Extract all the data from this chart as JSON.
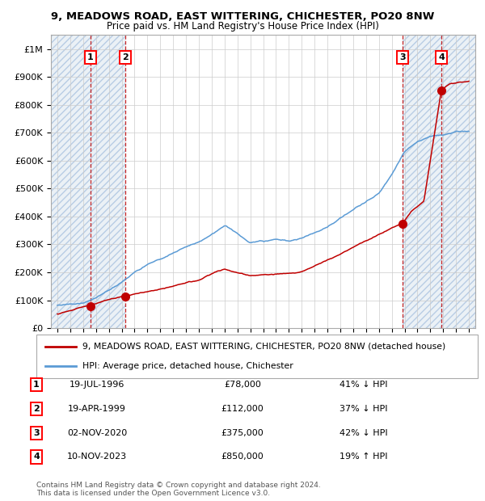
{
  "title_line1": "9, MEADOWS ROAD, EAST WITTERING, CHICHESTER, PO20 8NW",
  "title_line2": "Price paid vs. HM Land Registry's House Price Index (HPI)",
  "xlim": [
    1993.5,
    2026.5
  ],
  "ylim": [
    0,
    1050000
  ],
  "yticks": [
    0,
    100000,
    200000,
    300000,
    400000,
    500000,
    600000,
    700000,
    800000,
    900000,
    1000000
  ],
  "xticks": [
    1994,
    1995,
    1996,
    1997,
    1998,
    1999,
    2000,
    2001,
    2002,
    2003,
    2004,
    2005,
    2006,
    2007,
    2008,
    2009,
    2010,
    2011,
    2012,
    2013,
    2014,
    2015,
    2016,
    2017,
    2018,
    2019,
    2020,
    2021,
    2022,
    2023,
    2024,
    2025,
    2026
  ],
  "hpi_color": "#5b9bd5",
  "price_color": "#c00000",
  "hatch_fill_color": "#dce6f0",
  "hatch_edge_color": "#b8cce4",
  "grid_color": "#cccccc",
  "transactions": [
    {
      "num": 1,
      "date": 1996.55,
      "price": 78000,
      "label": "19-JUL-1996",
      "price_str": "£78,000",
      "hpi_rel": "41% ↓ HPI"
    },
    {
      "num": 2,
      "date": 1999.3,
      "price": 112000,
      "label": "19-APR-1999",
      "price_str": "£112,000",
      "hpi_rel": "37% ↓ HPI"
    },
    {
      "num": 3,
      "date": 2020.84,
      "price": 375000,
      "label": "02-NOV-2020",
      "price_str": "£375,000",
      "hpi_rel": "42% ↓ HPI"
    },
    {
      "num": 4,
      "date": 2023.86,
      "price": 850000,
      "label": "10-NOV-2023",
      "price_str": "£850,000",
      "hpi_rel": "19% ↑ HPI"
    }
  ],
  "legend_label_price": "9, MEADOWS ROAD, EAST WITTERING, CHICHESTER, PO20 8NW (detached house)",
  "legend_label_hpi": "HPI: Average price, detached house, Chichester",
  "footer": "Contains HM Land Registry data © Crown copyright and database right 2024.\nThis data is licensed under the Open Government Licence v3.0."
}
